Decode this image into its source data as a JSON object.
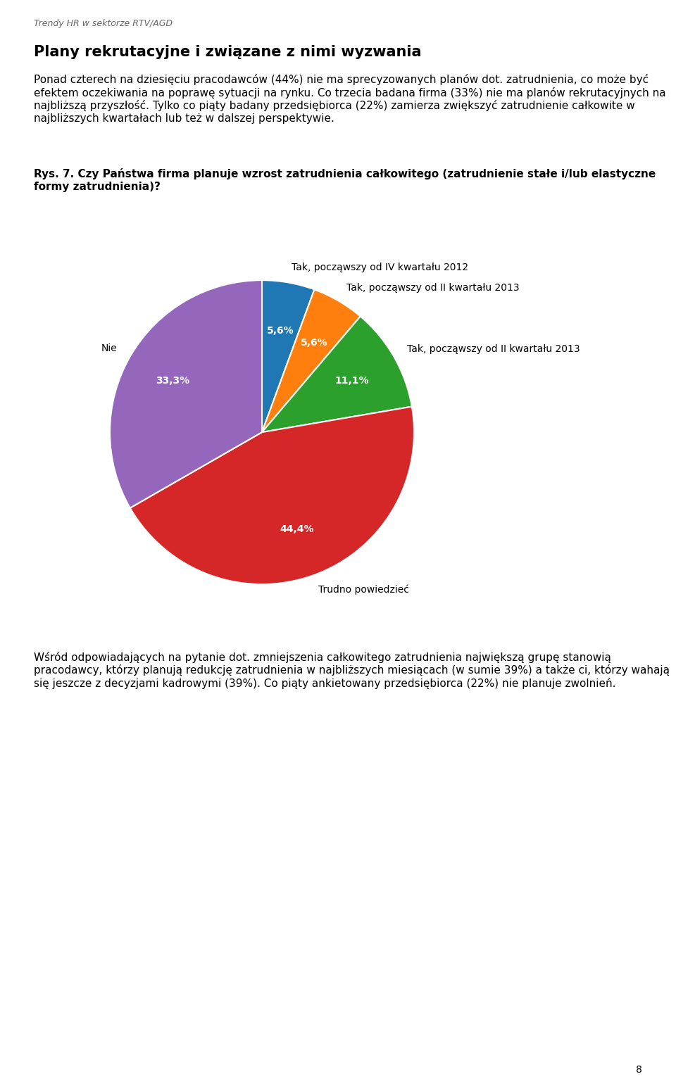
{
  "header": "Trendy HR w sektorze RTV/AGD",
  "section_title": "Plany rekrutacyjne i związane z nimi wyzwania",
  "paragraphs": [
    "Ponad czterech na dziesięciu pracodawców (44%) nie ma sprecyzowanych planów dot. zatrudnienia, co może być efektem oczekiwania na poprawę sytuacji na rynku. Co trzecia badana firma (33%) nie ma planów rekrutacyjnych na najbliższą przyszłość. Tylko co piąty badany przedsiębiorca (22%) zamierza zwiększyć zatrudnienie całkowite w najbliższych kwartałach lub też w dalszej perspektywie.",
    "Wśród odpowiadających na pytanie dot. zmniejszenia całkowitego zatrudnienia największą grupę stanowią pracodawcy, którzy planują redukcję zatrudnienia w najbliższych miesiącach (w sumie 39%) a także ci, którzy wahają się jeszcze z decyzjami kadrowymi (39%). Co piąty ankietowany przedsiębiorca (22%) nie planuje zwolnień."
  ],
  "page_number": "8",
  "chart_data": {
    "type": "pie",
    "title": "Rys. 7. Czy Państwa firma planuje wzrost zatrudnienia całkowitego (zatrudnienie stałe i/lub elastyczne formy zatrudnienia)?",
    "categories": [
      "Tak, począwszy od IV kwartału 2012",
      "Tak, począwszy od II kwartału 2013",
      "Tak, począwszy od II kwartału 2013",
      "Trudno powiedzieć",
      "Nie"
    ],
    "values": [
      5.6,
      5.6,
      11.1,
      44.4,
      33.3
    ],
    "value_labels": [
      "5,6%",
      "5,6%",
      "11,1%",
      "44,4%",
      "33,3%"
    ],
    "data_labels": true
  }
}
